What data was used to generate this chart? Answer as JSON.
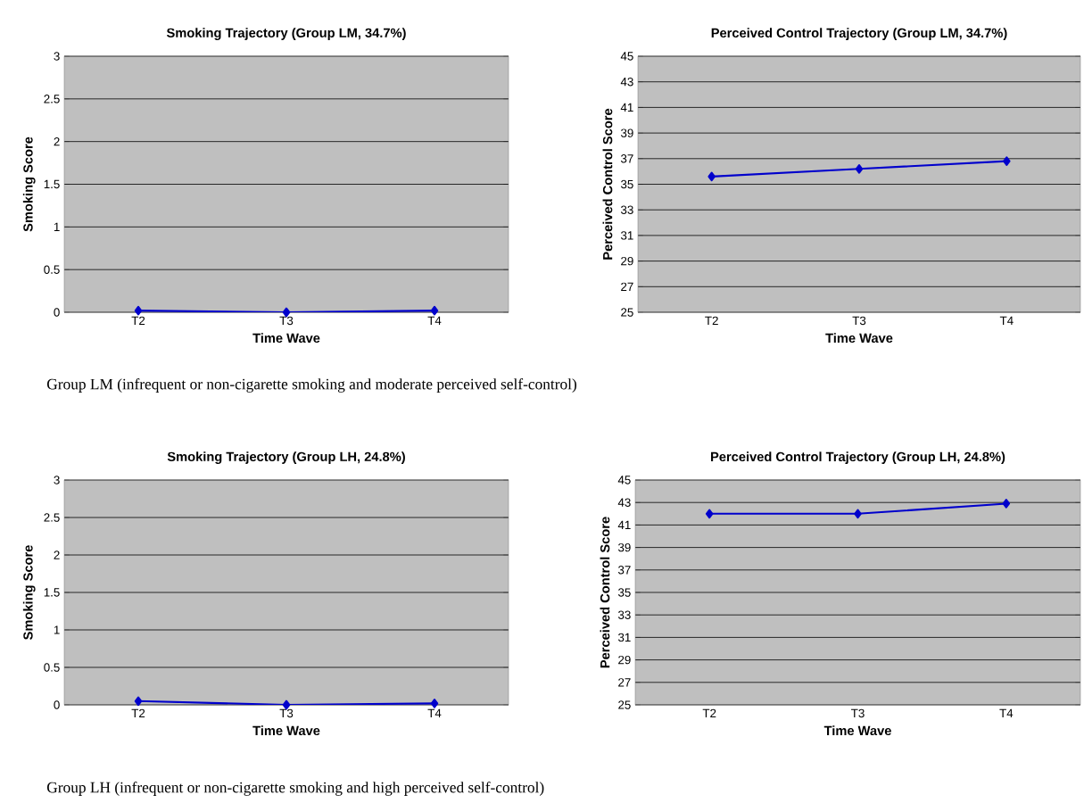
{
  "chart_data": [
    {
      "type": "line",
      "title": "Smoking Trajectory (Group LM, 34.7%)",
      "xlabel": "Time Wave",
      "ylabel": "Smoking Score",
      "categories": [
        "T2",
        "T3",
        "T4"
      ],
      "values": [
        0.02,
        0.0,
        0.02
      ],
      "color": "#0000cc",
      "ylim": [
        0,
        3
      ],
      "yticks": [
        0,
        0.5,
        1,
        1.5,
        2,
        2.5,
        3
      ],
      "grid": "y",
      "marker": "diamond",
      "annotations": [
        "Group LM (infrequent or non-cigarette smoking and moderate perceived self-control)"
      ]
    },
    {
      "type": "line",
      "title": "Perceived Control Trajectory (Group LM, 34.7%)",
      "xlabel": "Time Wave",
      "ylabel": "Perceived Control Score",
      "categories": [
        "T2",
        "T3",
        "T4"
      ],
      "values": [
        35.6,
        36.2,
        36.8
      ],
      "color": "#0000cc",
      "ylim": [
        25,
        45
      ],
      "yticks": [
        25,
        27,
        29,
        31,
        33,
        35,
        37,
        39,
        41,
        43,
        45
      ],
      "grid": "y",
      "marker": "diamond"
    },
    {
      "type": "line",
      "title": "Smoking Trajectory (Group LH, 24.8%)",
      "xlabel": "Time Wave",
      "ylabel": "Smoking Score",
      "categories": [
        "T2",
        "T3",
        "T4"
      ],
      "values": [
        0.05,
        0.0,
        0.02
      ],
      "color": "#0000cc",
      "ylim": [
        0,
        3
      ],
      "yticks": [
        0,
        0.5,
        1,
        1.5,
        2,
        2.5,
        3
      ],
      "grid": "y",
      "marker": "diamond",
      "annotations": [
        "Group LH (infrequent or non-cigarette smoking and high perceived self-control)"
      ]
    },
    {
      "type": "line",
      "title": "Perceived Control Trajectory (Group LH, 24.8%)",
      "xlabel": "Time Wave",
      "ylabel": "Perceived Control Score",
      "categories": [
        "T2",
        "T3",
        "T4"
      ],
      "values": [
        42.0,
        42.0,
        42.9
      ],
      "color": "#0000cc",
      "ylim": [
        25,
        45
      ],
      "yticks": [
        25,
        27,
        29,
        31,
        33,
        35,
        37,
        39,
        41,
        43,
        45
      ],
      "grid": "y",
      "marker": "diamond"
    }
  ]
}
